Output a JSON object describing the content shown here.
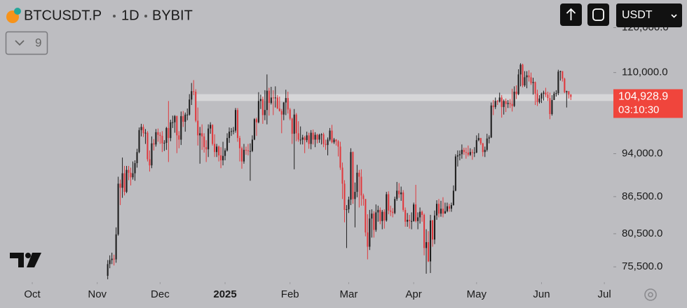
{
  "chart_data": {
    "type": "candlestick",
    "symbol": "BTCUSDT.P",
    "interval": "1D",
    "exchange": "BYBIT",
    "indicator_count": 9,
    "currency": "USDT",
    "log_scale": true,
    "up_color": "#1f1f1f",
    "down_color": "#e0393e",
    "xlim": [
      -15.4,
      277.3
    ],
    "ylim": [
      73600,
      126600
    ],
    "xticks": [
      {
        "value": 0,
        "label": "Oct"
      },
      {
        "value": 31,
        "label": "Nov"
      },
      {
        "value": 61,
        "label": "Dec"
      },
      {
        "value": 92,
        "label": "2025"
      },
      {
        "value": 123,
        "label": "Feb"
      },
      {
        "value": 151,
        "label": "Mar"
      },
      {
        "value": 182,
        "label": "Apr"
      },
      {
        "value": 212,
        "label": "May"
      },
      {
        "value": 243,
        "label": "Jun"
      },
      {
        "value": 273,
        "label": "Jul"
      }
    ],
    "yticks": [
      {
        "value": 75500,
        "label": "75,500.0"
      },
      {
        "value": 80500,
        "label": "80,500.0"
      },
      {
        "value": 86500,
        "label": "86,500.0"
      },
      {
        "value": 94000,
        "label": "94,000.0"
      },
      {
        "value": 110000,
        "label": "110,000.0"
      },
      {
        "value": 120000,
        "label": "120,000.0"
      }
    ],
    "zone": {
      "low": 104100,
      "high": 105500,
      "start": 78
    },
    "last_price": {
      "value": 104928.9,
      "label": "104,928.9"
    },
    "countdown": "03:10:30",
    "x": [
      36,
      37,
      38,
      39,
      40,
      41,
      42,
      43,
      44,
      45,
      46,
      47,
      48,
      49,
      50,
      51,
      52,
      53,
      54,
      55,
      56,
      57,
      58,
      59,
      60,
      61,
      62,
      63,
      64,
      65,
      66,
      67,
      68,
      69,
      70,
      71,
      72,
      73,
      74,
      75,
      76,
      77,
      78,
      79,
      80,
      81,
      82,
      83,
      84,
      85,
      86,
      87,
      88,
      89,
      90,
      91,
      92,
      93,
      94,
      95,
      96,
      97,
      98,
      99,
      100,
      101,
      102,
      103,
      104,
      105,
      106,
      107,
      108,
      109,
      110,
      111,
      112,
      113,
      114,
      115,
      116,
      117,
      118,
      119,
      120,
      121,
      122,
      123,
      124,
      125,
      126,
      127,
      128,
      129,
      130,
      131,
      132,
      133,
      134,
      135,
      136,
      137,
      138,
      139,
      140,
      141,
      142,
      143,
      144,
      145,
      146,
      147,
      148,
      149,
      150,
      151,
      152,
      153,
      154,
      155,
      156,
      157,
      158,
      159,
      160,
      161,
      162,
      163,
      164,
      165,
      166,
      167,
      168,
      169,
      170,
      171,
      172,
      173,
      174,
      175,
      176,
      177,
      178,
      179,
      180,
      181,
      182,
      183,
      184,
      185,
      186,
      187,
      188,
      189,
      190,
      191,
      192,
      193,
      194,
      195,
      196,
      197,
      198,
      199,
      200,
      201,
      202,
      203,
      204,
      205,
      206,
      207,
      208,
      209,
      210,
      211,
      212,
      213,
      214,
      215,
      216,
      217,
      218,
      219,
      220,
      221,
      222,
      223,
      224,
      225,
      226,
      227,
      228,
      229,
      230,
      231,
      232,
      233,
      234,
      235,
      236,
      237,
      238,
      239,
      240,
      241,
      242,
      243,
      244,
      245,
      246,
      247,
      248,
      249,
      250,
      251,
      252,
      253,
      254,
      255,
      256,
      257
    ],
    "open": [
      74200,
      75900,
      76500,
      76700,
      76600,
      80400,
      88700,
      88000,
      90500,
      87300,
      91100,
      90600,
      89800,
      90500,
      92300,
      94300,
      98400,
      99000,
      97800,
      97900,
      93000,
      91900,
      95900,
      95700,
      98000,
      97500,
      97300,
      95900,
      96000,
      98800,
      96900,
      99900,
      99900,
      101100,
      97400,
      96600,
      101100,
      100000,
      101400,
      101400,
      104400,
      106100,
      106000,
      100200,
      97400,
      97800,
      97200,
      95200,
      94800,
      98700,
      99400,
      95800,
      94300,
      95300,
      93700,
      92800,
      93600,
      94600,
      96900,
      98100,
      98200,
      98300,
      102300,
      96900,
      95000,
      92600,
      94700,
      94600,
      94500,
      94500,
      96600,
      100500,
      99900,
      104100,
      104500,
      101300,
      102300,
      106200,
      103700,
      104800,
      104700,
      104800,
      102600,
      102100,
      101400,
      103800,
      104700,
      102400,
      100600,
      97700,
      101400,
      97800,
      96600,
      96600,
      97000,
      96500,
      97400,
      95800,
      97900,
      96600,
      97500,
      96600,
      97500,
      97600,
      95800,
      95600,
      96600,
      98300,
      96100,
      96600,
      96300,
      95300,
      91500,
      88700,
      84300,
      84400,
      86000,
      94300,
      86100,
      87300,
      90600,
      89900,
      86700,
      86100,
      80700,
      78500,
      82900,
      83700,
      81100,
      83900,
      84300,
      82500,
      84000,
      82600,
      86900,
      84200,
      84000,
      83800,
      86100,
      87500,
      86900,
      87200,
      84300,
      82400,
      82700,
      82500,
      82500,
      85200,
      82500,
      83100,
      84000,
      83500,
      78300,
      79200,
      76300,
      82600,
      79600,
      83400,
      85300,
      83700,
      84500,
      83700,
      84100,
      84900,
      84500,
      85100,
      87500,
      93500,
      93700,
      93900,
      94700,
      94300,
      94200,
      93800,
      94300,
      94200,
      94200,
      96500,
      96900,
      95900,
      94300,
      94700,
      96800,
      97000,
      103200,
      102900,
      104100,
      104000,
      104800,
      102900,
      104100,
      103500,
      103700,
      103500,
      103100,
      106000,
      105500,
      109600,
      111700,
      107300,
      109000,
      109400,
      109000,
      107800,
      108000,
      105600,
      103900,
      104600,
      105600,
      105800,
      105400,
      104700,
      101500,
      104300,
      105600,
      105700,
      110200,
      110300,
      108700,
      105900,
      106100,
      105400
    ],
    "high": [
      76500,
      77200,
      77600,
      77300,
      81500,
      89900,
      89400,
      93300,
      91800,
      91800,
      91800,
      91500,
      92600,
      92800,
      94900,
      98900,
      99600,
      99500,
      98600,
      98200,
      94600,
      97200,
      96700,
      98600,
      98700,
      98000,
      98200,
      96500,
      99000,
      104100,
      100400,
      101200,
      101300,
      101200,
      98200,
      102000,
      102100,
      101800,
      102600,
      105500,
      107800,
      108400,
      106500,
      102800,
      99000,
      99500,
      97800,
      96500,
      99500,
      99900,
      99500,
      97600,
      95800,
      95500,
      95200,
      96200,
      95000,
      97800,
      98900,
      98800,
      99000,
      102700,
      102700,
      97300,
      95300,
      95800,
      95300,
      95800,
      95900,
      97400,
      100700,
      100800,
      105900,
      105400,
      105000,
      106300,
      109600,
      106800,
      107000,
      106300,
      107100,
      105300,
      105000,
      102500,
      103900,
      106400,
      106000,
      102700,
      100800,
      102500,
      101700,
      100100,
      99100,
      97500,
      97300,
      98100,
      97900,
      98400,
      98500,
      98000,
      97700,
      97700,
      97800,
      97900,
      96600,
      97000,
      98800,
      99400,
      96900,
      96700,
      96500,
      96200,
      92400,
      89300,
      85100,
      86500,
      95000,
      94400,
      88900,
      92000,
      91100,
      91200,
      87000,
      86100,
      83600,
      84300,
      84400,
      84100,
      85200,
      85000,
      84700,
      84300,
      84400,
      87300,
      87400,
      85000,
      84600,
      86500,
      89000,
      88800,
      88200,
      87600,
      84700,
      83800,
      83500,
      83900,
      85500,
      88500,
      83900,
      84700,
      84200,
      83700,
      81200,
      80900,
      83500,
      82700,
      84200,
      85900,
      86100,
      85800,
      86400,
      85500,
      85500,
      85300,
      85500,
      88400,
      93900,
      94600,
      94600,
      95700,
      95100,
      95100,
      95500,
      95000,
      94800,
      95200,
      97400,
      97800,
      96900,
      96000,
      95300,
      97700,
      97400,
      103800,
      104300,
      104800,
      104300,
      105800,
      105300,
      104400,
      104600,
      104300,
      104500,
      106600,
      107100,
      107300,
      110700,
      112000,
      111900,
      110300,
      110300,
      110500,
      110000,
      108900,
      108100,
      106400,
      105300,
      105800,
      106200,
      106800,
      106000,
      105800,
      105300,
      106000,
      106300,
      110600,
      110400,
      110300,
      108900,
      106200,
      106100,
      105500
    ],
    "low": [
      73700,
      75300,
      75900,
      75700,
      76100,
      80200,
      85100,
      86300,
      86700,
      87100,
      89300,
      88400,
      89400,
      89200,
      91500,
      94100,
      97200,
      97100,
      95800,
      92600,
      90800,
      91400,
      94600,
      95300,
      96200,
      95800,
      94300,
      94500,
      94700,
      92500,
      96300,
      98800,
      97900,
      94100,
      95000,
      95600,
      99000,
      98100,
      100300,
      101200,
      103300,
      105300,
      99900,
      95500,
      92200,
      94700,
      94200,
      92500,
      93400,
      97700,
      95500,
      93400,
      93400,
      92600,
      91400,
      91900,
      92800,
      94400,
      96000,
      97300,
      97600,
      97900,
      96200,
      92600,
      91300,
      92200,
      93800,
      93700,
      89200,
      94300,
      96500,
      97300,
      99700,
      102500,
      99600,
      100300,
      99500,
      101200,
      103400,
      101300,
      102800,
      102500,
      102000,
      97800,
      100300,
      101300,
      101600,
      100300,
      95800,
      91200,
      96300,
      96200,
      95700,
      95700,
      94100,
      96100,
      94900,
      94800,
      95700,
      95200,
      95900,
      96000,
      95700,
      95200,
      94700,
      93700,
      96300,
      95900,
      95800,
      95500,
      93500,
      91100,
      86100,
      82300,
      78300,
      83800,
      85100,
      85300,
      81500,
      86400,
      84700,
      85000,
      85000,
      80100,
      76600,
      78000,
      79900,
      79900,
      80800,
      82400,
      82000,
      81200,
      81300,
      82400,
      83600,
      83300,
      83100,
      83600,
      85800,
      86300,
      85800,
      84000,
      81600,
      81600,
      81300,
      81200,
      82400,
      82300,
      81200,
      82100,
      82400,
      77200,
      74500,
      76200,
      74600,
      78500,
      78900,
      82700,
      83100,
      83200,
      83100,
      83700,
      83900,
      84000,
      84000,
      85000,
      87400,
      91700,
      92800,
      93100,
      93800,
      93100,
      93500,
      93600,
      92900,
      93400,
      94100,
      96300,
      95600,
      93500,
      93400,
      94400,
      95900,
      96900,
      101300,
      102500,
      103300,
      103800,
      100800,
      101400,
      101900,
      102700,
      102700,
      102000,
      102900,
      104500,
      105300,
      107100,
      106900,
      107000,
      106700,
      108100,
      107400,
      105400,
      103300,
      103100,
      103600,
      103700,
      104200,
      104900,
      104100,
      100500,
      101200,
      104300,
      105000,
      105300,
      108300,
      108100,
      105700,
      102800,
      104600,
      104300
    ],
    "close": [
      75900,
      76500,
      76700,
      76600,
      80400,
      88700,
      88000,
      90500,
      87300,
      91100,
      90600,
      89800,
      90500,
      92300,
      94300,
      98400,
      99000,
      97800,
      97900,
      93000,
      91900,
      95900,
      95700,
      98000,
      97500,
      97300,
      95900,
      96000,
      98800,
      96900,
      99900,
      99900,
      101100,
      97400,
      96600,
      101100,
      100000,
      101400,
      101400,
      104400,
      106100,
      106000,
      100200,
      97400,
      97800,
      97200,
      95200,
      94800,
      98700,
      99400,
      95800,
      94300,
      95300,
      93700,
      92800,
      93600,
      94600,
      96900,
      98100,
      98200,
      98300,
      102300,
      96900,
      95000,
      92600,
      94700,
      94600,
      94500,
      94500,
      96600,
      100500,
      99900,
      104100,
      104500,
      101300,
      102300,
      106200,
      103700,
      104800,
      104700,
      104800,
      102600,
      102100,
      101400,
      103800,
      104700,
      102400,
      100600,
      97700,
      101400,
      97800,
      96600,
      96600,
      97000,
      96500,
      97400,
      95800,
      97900,
      96600,
      97500,
      96600,
      97500,
      97600,
      95800,
      95600,
      96600,
      98300,
      96100,
      96600,
      96300,
      95300,
      91500,
      88700,
      84300,
      84400,
      86000,
      94300,
      86100,
      87300,
      90600,
      89900,
      86700,
      86100,
      80700,
      78500,
      82900,
      83700,
      81100,
      83900,
      84300,
      82500,
      84000,
      82600,
      86900,
      84200,
      84000,
      83800,
      86100,
      87500,
      86900,
      87200,
      84300,
      82400,
      82700,
      82500,
      82500,
      85200,
      82500,
      83100,
      84000,
      83500,
      78300,
      79200,
      76300,
      82600,
      79600,
      83400,
      85300,
      83700,
      84500,
      83700,
      84100,
      84900,
      84500,
      85100,
      87500,
      93500,
      93700,
      93900,
      94700,
      94300,
      94200,
      93800,
      94300,
      94200,
      94200,
      96500,
      96900,
      95900,
      94300,
      94700,
      96800,
      97000,
      103200,
      102900,
      104100,
      104000,
      104800,
      102900,
      104100,
      103500,
      103700,
      103500,
      103100,
      106000,
      105500,
      109600,
      111700,
      107300,
      109000,
      109400,
      109000,
      107800,
      108000,
      105600,
      103900,
      104600,
      105600,
      105800,
      105400,
      104700,
      101500,
      104300,
      105600,
      105700,
      110200,
      110300,
      108700,
      105900,
      106100,
      105400,
      104928.9
    ]
  }
}
